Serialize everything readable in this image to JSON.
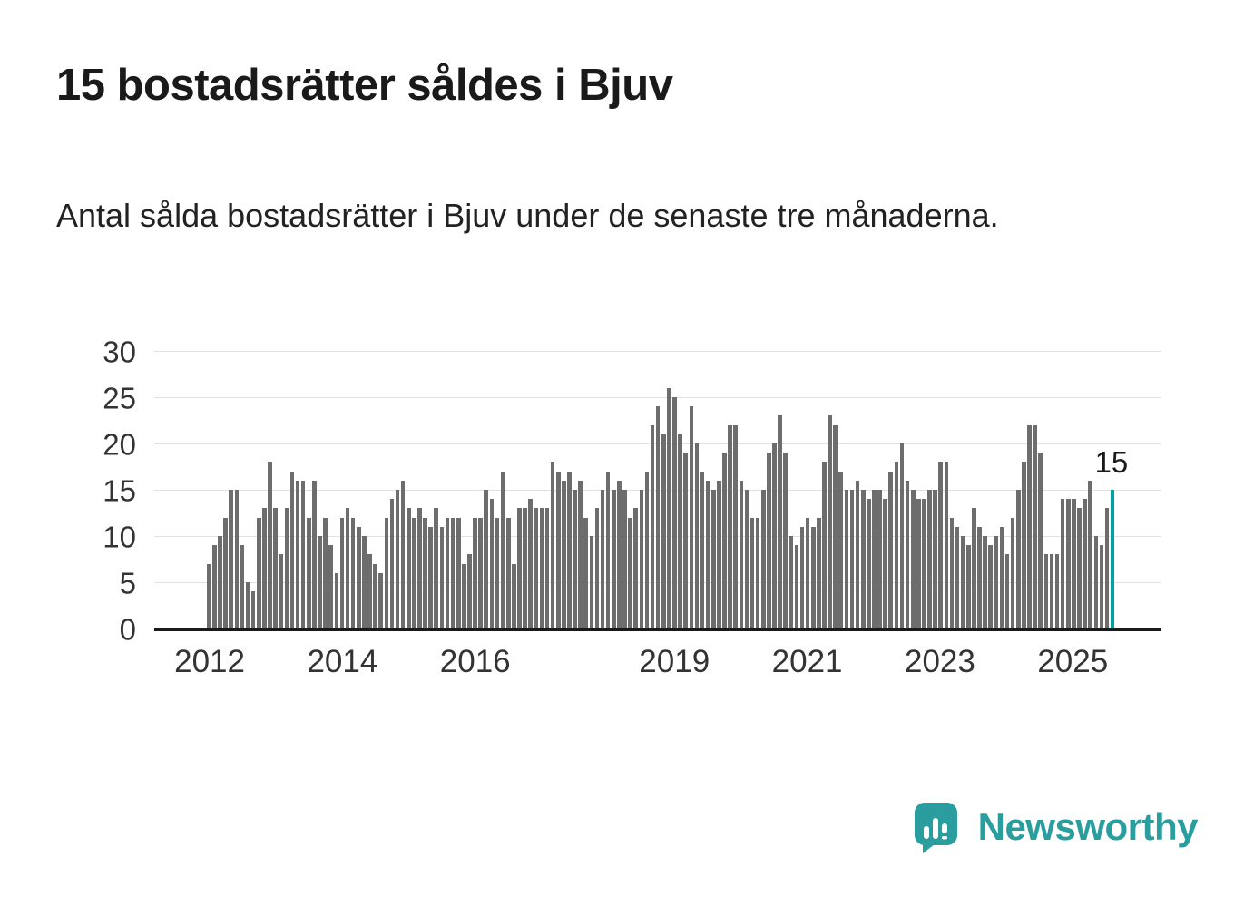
{
  "page": {
    "title": "15 bostadsrätter såldes i Bjuv",
    "subtitle": "Antal sålda bostadsrätter i Bjuv under de senaste tre månaderna."
  },
  "branding": {
    "name": "Newsworthy",
    "color": "#2a9e9e",
    "icon": "bar-chart-speech-bubble-icon"
  },
  "chart_data": {
    "type": "bar",
    "title": "15 bostadsrätter såldes i Bjuv",
    "x_unit": "month",
    "x_start": "2012-01",
    "x_end": "2025-08",
    "values": [
      7,
      9,
      10,
      12,
      15,
      15,
      9,
      5,
      4,
      12,
      13,
      18,
      13,
      8,
      13,
      17,
      16,
      16,
      12,
      16,
      10,
      12,
      9,
      6,
      12,
      13,
      12,
      11,
      10,
      8,
      7,
      6,
      12,
      14,
      15,
      16,
      13,
      12,
      13,
      12,
      11,
      13,
      11,
      12,
      12,
      12,
      7,
      8,
      12,
      12,
      15,
      14,
      12,
      17,
      12,
      7,
      13,
      13,
      14,
      13,
      13,
      13,
      18,
      17,
      16,
      17,
      15,
      16,
      12,
      10,
      13,
      15,
      17,
      15,
      16,
      15,
      12,
      13,
      15,
      17,
      22,
      24,
      21,
      26,
      25,
      21,
      19,
      24,
      20,
      17,
      16,
      15,
      16,
      19,
      22,
      22,
      16,
      15,
      12,
      12,
      15,
      19,
      20,
      23,
      19,
      10,
      9,
      11,
      12,
      11,
      12,
      18,
      23,
      22,
      17,
      15,
      15,
      16,
      15,
      14,
      15,
      15,
      14,
      17,
      18,
      20,
      16,
      15,
      14,
      14,
      15,
      15,
      18,
      18,
      12,
      11,
      10,
      9,
      13,
      11,
      10,
      9,
      10,
      11,
      8,
      12,
      15,
      18,
      22,
      22,
      19,
      8,
      8,
      8,
      14,
      14,
      14,
      13,
      14,
      16,
      10,
      9,
      13,
      15
    ],
    "highlight_index": 163,
    "highlight_value": 15,
    "annotation": "15",
    "bar_color": "#6d6d6d",
    "highlight_color": "#00a2a2",
    "ylim": [
      0,
      30
    ],
    "yticks": [
      0,
      5,
      10,
      15,
      20,
      25,
      30
    ],
    "xticks": [
      {
        "label": "2012",
        "month_index": 0
      },
      {
        "label": "2014",
        "month_index": 24
      },
      {
        "label": "2016",
        "month_index": 48
      },
      {
        "label": "2019",
        "month_index": 84
      },
      {
        "label": "2021",
        "month_index": 108
      },
      {
        "label": "2023",
        "month_index": 132
      },
      {
        "label": "2025",
        "month_index": 156
      }
    ],
    "grid": "horizontal",
    "legend": "none"
  }
}
